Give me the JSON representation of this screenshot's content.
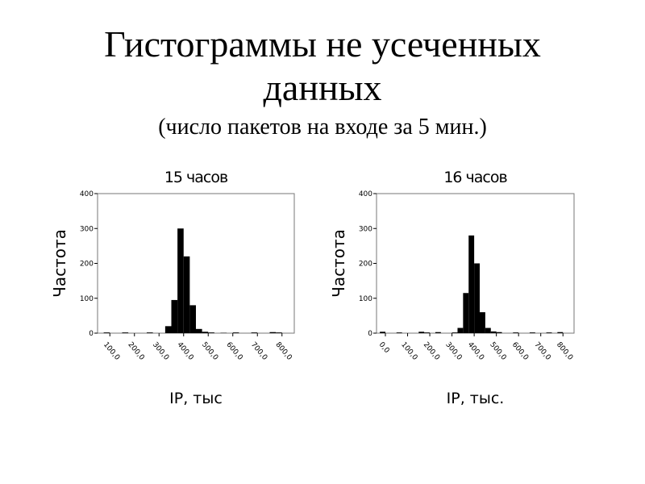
{
  "title": "Гистограммы не усеченных данных",
  "subtitle": "(число пакетов на входе за 5 мин.)",
  "chart_data": [
    {
      "type": "histogram",
      "title": "15 часов",
      "x_label": "IP, тыс",
      "y_label": "Частота",
      "color": "#000000",
      "bins": [
        50,
        75,
        100,
        125,
        150,
        175,
        200,
        225,
        250,
        275,
        300,
        325,
        350,
        375,
        400,
        425,
        450,
        475,
        500,
        525,
        550,
        575,
        600,
        625,
        650,
        675,
        700,
        725,
        750,
        775,
        800,
        825,
        850
      ],
      "counts": [
        0,
        2,
        0,
        0,
        2,
        0,
        0,
        0,
        2,
        0,
        0,
        20,
        95,
        300,
        220,
        80,
        12,
        4,
        2,
        0,
        1,
        0,
        2,
        0,
        0,
        2,
        0,
        0,
        3,
        2,
        0,
        0
      ],
      "xlim": [
        50,
        850
      ],
      "ylim": [
        0,
        400
      ],
      "xticks": [
        {
          "value": 100,
          "label": "100,0"
        },
        {
          "value": 200,
          "label": "200,0"
        },
        {
          "value": 300,
          "label": "300,0"
        },
        {
          "value": 400,
          "label": "400,0"
        },
        {
          "value": 500,
          "label": "500,0"
        },
        {
          "value": 600,
          "label": "600,0"
        },
        {
          "value": 700,
          "label": "700,0"
        },
        {
          "value": 800,
          "label": "800,0"
        }
      ],
      "yticks": [
        0,
        100,
        200,
        300,
        400
      ]
    },
    {
      "type": "histogram",
      "title": "16 часов",
      "x_label": "IP, тыс.",
      "y_label": "Частота",
      "color": "#000000",
      "bins": [
        -25,
        0,
        25,
        50,
        75,
        100,
        125,
        150,
        175,
        200,
        225,
        250,
        275,
        300,
        325,
        350,
        375,
        400,
        425,
        450,
        475,
        500,
        525,
        550,
        575,
        600,
        625,
        650,
        675,
        700,
        725,
        750,
        775,
        800,
        825,
        850
      ],
      "counts": [
        4,
        0,
        0,
        2,
        0,
        0,
        0,
        4,
        2,
        0,
        3,
        0,
        0,
        2,
        15,
        115,
        280,
        200,
        60,
        15,
        5,
        3,
        0,
        0,
        2,
        0,
        0,
        2,
        0,
        0,
        2,
        0,
        3,
        0,
        0
      ],
      "xlim": [
        -40,
        850
      ],
      "ylim": [
        0,
        400
      ],
      "xticks": [
        {
          "value": 0,
          "label": "0,0"
        },
        {
          "value": 100,
          "label": "100,0"
        },
        {
          "value": 200,
          "label": "200,0"
        },
        {
          "value": 300,
          "label": "300,0"
        },
        {
          "value": 400,
          "label": "400,0"
        },
        {
          "value": 500,
          "label": "500,0"
        },
        {
          "value": 600,
          "label": "600,0"
        },
        {
          "value": 700,
          "label": "700,0"
        },
        {
          "value": 800,
          "label": "800,0"
        }
      ],
      "yticks": [
        0,
        100,
        200,
        300,
        400
      ]
    }
  ]
}
